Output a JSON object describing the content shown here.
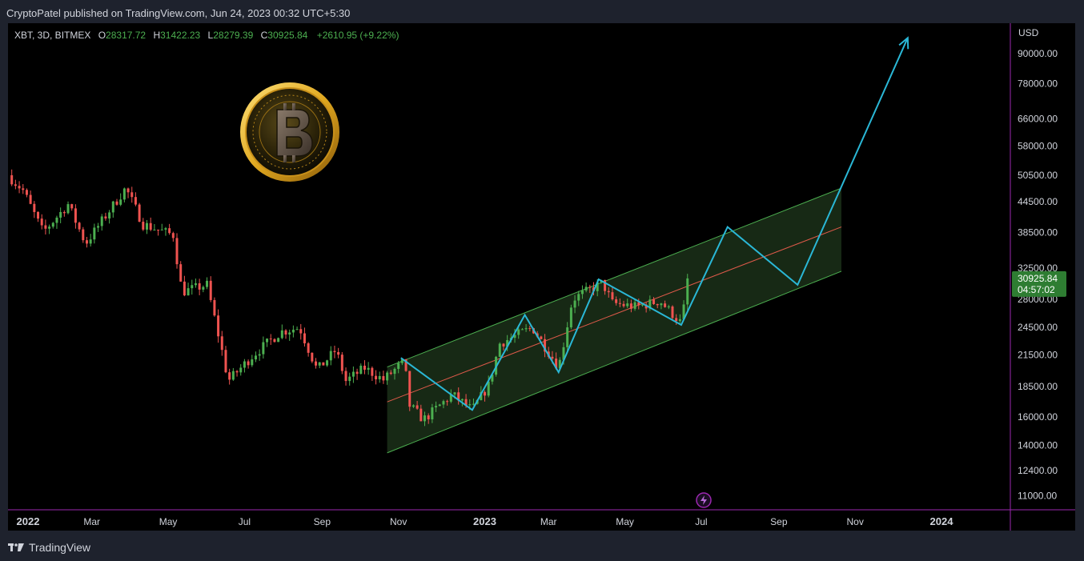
{
  "header": {
    "publisher": "CryptoPatel published on TradingView.com, Jun 24, 2023 00:32 UTC+5:30"
  },
  "footer": {
    "brand": "TradingView"
  },
  "colors": {
    "up": "#4caf50",
    "down": "#ef5350",
    "channel": "#4caf50",
    "channel_fill": "#1a2d17",
    "midline": "#e05a4a",
    "projection": "#2ab7d6",
    "price_badge": "#2e7d32"
  },
  "chart_data": {
    "type": "candlestick",
    "title": "",
    "symbol_info": {
      "symbol": "XBT, 3D, BITMEX",
      "o_label": "O",
      "o": "28317.72",
      "h_label": "H",
      "h": "31422.23",
      "l_label": "L",
      "l": "28279.39",
      "c_label": "C",
      "c": "30925.84",
      "change": "+2610.95 (+9.22%)"
    },
    "y_axis": {
      "unit": "USD",
      "scale": "log",
      "ylim": [
        10300,
        104000
      ],
      "ticks": [
        "90000.00",
        "78000.00",
        "66000.00",
        "58000.00",
        "50500.00",
        "44500.00",
        "38500.00",
        "32500.00",
        "28000.00",
        "24500.00",
        "21500.00",
        "18500.00",
        "16000.00",
        "14000.00",
        "12400.00",
        "11000.00"
      ]
    },
    "x_axis": {
      "range": [
        "2021-12-24",
        "2024-03-04"
      ],
      "ticks": [
        {
          "label": "2022",
          "date": "2022-01-01",
          "bold": true
        },
        {
          "label": "Mar",
          "date": "2022-03-01"
        },
        {
          "label": "May",
          "date": "2022-05-01"
        },
        {
          "label": "Jul",
          "date": "2022-07-01"
        },
        {
          "label": "Sep",
          "date": "2022-09-01"
        },
        {
          "label": "Nov",
          "date": "2022-11-01"
        },
        {
          "label": "2023",
          "date": "2023-01-01",
          "bold": true
        },
        {
          "label": "Mar",
          "date": "2023-03-01"
        },
        {
          "label": "May",
          "date": "2023-05-01"
        },
        {
          "label": "Jul",
          "date": "2023-07-01"
        },
        {
          "label": "Sep",
          "date": "2023-09-01"
        },
        {
          "label": "Nov",
          "date": "2023-11-01"
        },
        {
          "label": "2024",
          "date": "2024-01-01",
          "bold": true
        }
      ]
    },
    "last_price": {
      "value": 30925.84,
      "label": "30925.84",
      "countdown": "04:57:02"
    },
    "price_path": [
      [
        "2021-12-24",
        50500
      ],
      [
        "2022-01-05",
        47000
      ],
      [
        "2022-01-21",
        38500
      ],
      [
        "2022-02-10",
        44000
      ],
      [
        "2022-02-24",
        36500
      ],
      [
        "2022-03-28",
        47500
      ],
      [
        "2022-04-11",
        40000
      ],
      [
        "2022-05-05",
        38000
      ],
      [
        "2022-05-12",
        29000
      ],
      [
        "2022-06-01",
        30000
      ],
      [
        "2022-06-12",
        22500
      ],
      [
        "2022-06-18",
        19000
      ],
      [
        "2022-07-08",
        21500
      ],
      [
        "2022-07-30",
        24000
      ],
      [
        "2022-08-14",
        24500
      ],
      [
        "2022-08-28",
        20000
      ],
      [
        "2022-09-12",
        22000
      ],
      [
        "2022-09-20",
        19000
      ],
      [
        "2022-10-05",
        20200
      ],
      [
        "2022-10-20",
        19100
      ],
      [
        "2022-11-06",
        20900
      ],
      [
        "2022-11-09",
        17000
      ],
      [
        "2022-11-21",
        15800
      ],
      [
        "2022-12-14",
        17800
      ],
      [
        "2022-12-30",
        16550
      ],
      [
        "2023-01-12",
        18600
      ],
      [
        "2023-01-21",
        22700
      ],
      [
        "2023-02-16",
        24500
      ],
      [
        "2023-03-09",
        20300
      ],
      [
        "2023-03-12",
        22000
      ],
      [
        "2023-03-20",
        28000
      ],
      [
        "2023-04-13",
        30300
      ],
      [
        "2023-04-21",
        27500
      ],
      [
        "2023-05-10",
        27000
      ],
      [
        "2023-05-29",
        27800
      ],
      [
        "2023-06-15",
        25000
      ],
      [
        "2023-06-21",
        30925
      ]
    ],
    "channel": {
      "upper": [
        [
          "2022-10-23",
          20300
        ],
        [
          "2023-10-21",
          47500
        ]
      ],
      "mid": [
        [
          "2022-10-23",
          17200
        ],
        [
          "2023-10-21",
          39500
        ]
      ],
      "lower": [
        [
          "2022-10-23",
          13500
        ],
        [
          "2023-10-21",
          32000
        ]
      ]
    },
    "projection": [
      [
        "2022-11-03",
        21200
      ],
      [
        "2022-12-30",
        16550
      ],
      [
        "2023-02-10",
        26000
      ],
      [
        "2023-03-09",
        19800
      ],
      [
        "2023-04-10",
        30800
      ],
      [
        "2023-06-15",
        24800
      ],
      [
        "2023-07-22",
        39500
      ],
      [
        "2023-09-16",
        30000
      ],
      [
        "2023-12-13",
        97000
      ]
    ]
  }
}
